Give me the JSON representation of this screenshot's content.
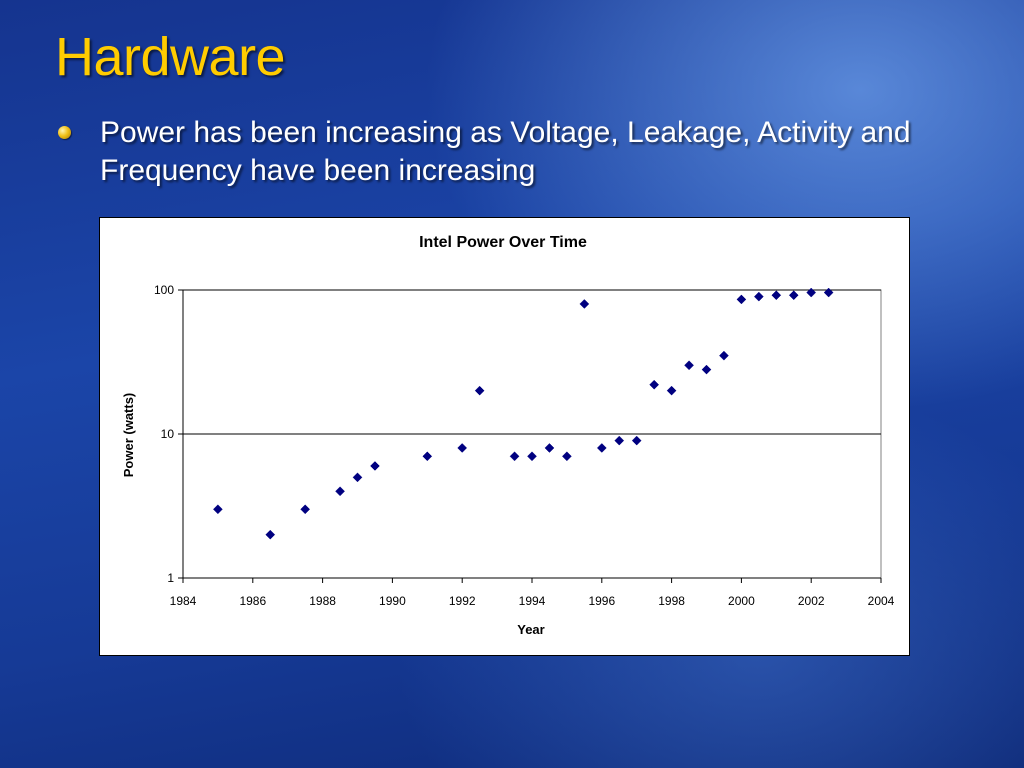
{
  "slide": {
    "title": "Hardware",
    "bullets": [
      "Power has been increasing as Voltage, Leakage, Activity and Frequency have been increasing"
    ]
  },
  "colors": {
    "title": "#ffcc00",
    "bullet_text": "#ffffff",
    "marker": "#000080",
    "background": "#1b45a8"
  },
  "chart_data": {
    "type": "scatter",
    "title": "Intel Power Over Time",
    "xlabel": "Year",
    "ylabel": "Power (watts)",
    "xlim": [
      1984,
      2004
    ],
    "ylim": [
      1,
      100
    ],
    "yscale": "log",
    "x_ticks": [
      "1984",
      "1986",
      "1988",
      "1990",
      "1992",
      "1994",
      "1996",
      "1998",
      "2000",
      "2002",
      "2004"
    ],
    "y_ticks": [
      "1",
      "10",
      "100"
    ],
    "grid": "horizontal major gridlines",
    "legend": "none",
    "marker": "diamond",
    "points": [
      {
        "x": 1985.0,
        "y": 3
      },
      {
        "x": 1986.5,
        "y": 2
      },
      {
        "x": 1987.5,
        "y": 3
      },
      {
        "x": 1988.5,
        "y": 4
      },
      {
        "x": 1989.0,
        "y": 5
      },
      {
        "x": 1989.5,
        "y": 6
      },
      {
        "x": 1991.0,
        "y": 7
      },
      {
        "x": 1992.0,
        "y": 8
      },
      {
        "x": 1992.5,
        "y": 20
      },
      {
        "x": 1993.5,
        "y": 7
      },
      {
        "x": 1994.0,
        "y": 7
      },
      {
        "x": 1994.5,
        "y": 8
      },
      {
        "x": 1995.0,
        "y": 7
      },
      {
        "x": 1995.5,
        "y": 80
      },
      {
        "x": 1996.0,
        "y": 8
      },
      {
        "x": 1996.5,
        "y": 9
      },
      {
        "x": 1997.0,
        "y": 9
      },
      {
        "x": 1997.5,
        "y": 22
      },
      {
        "x": 1998.0,
        "y": 20
      },
      {
        "x": 1998.5,
        "y": 30
      },
      {
        "x": 1999.0,
        "y": 28
      },
      {
        "x": 1999.5,
        "y": 35
      },
      {
        "x": 2000.0,
        "y": 86
      },
      {
        "x": 2000.5,
        "y": 90
      },
      {
        "x": 2001.0,
        "y": 92
      },
      {
        "x": 2001.5,
        "y": 92
      },
      {
        "x": 2002.0,
        "y": 96
      },
      {
        "x": 2002.5,
        "y": 96
      }
    ]
  }
}
